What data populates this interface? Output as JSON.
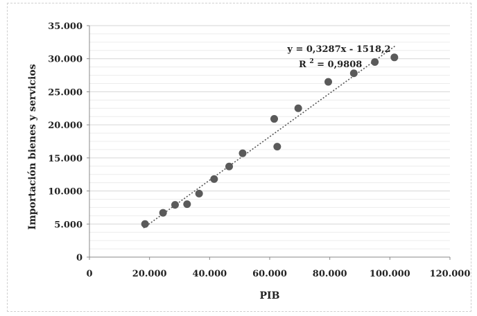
{
  "chart_data": {
    "type": "scatter",
    "title": "",
    "xlabel": "PIB",
    "ylabel": "Importación bienes y servicios",
    "xlim": [
      0,
      120000
    ],
    "ylim": [
      0,
      35000
    ],
    "x_ticks": [
      "0",
      "20.000",
      "40.000",
      "60.000",
      "80.000",
      "100.000",
      "120.000"
    ],
    "y_ticks": [
      "0",
      "5.000",
      "10.000",
      "15.000",
      "20.000",
      "25.000",
      "30.000",
      "35.000"
    ],
    "grid": true,
    "points": [
      {
        "x": 18500,
        "y": 5000
      },
      {
        "x": 24500,
        "y": 6700
      },
      {
        "x": 28500,
        "y": 7900
      },
      {
        "x": 32500,
        "y": 8000
      },
      {
        "x": 36500,
        "y": 9600
      },
      {
        "x": 41500,
        "y": 11800
      },
      {
        "x": 46500,
        "y": 13700
      },
      {
        "x": 51000,
        "y": 15700
      },
      {
        "x": 61500,
        "y": 20900
      },
      {
        "x": 62500,
        "y": 16700
      },
      {
        "x": 69500,
        "y": 22500
      },
      {
        "x": 79500,
        "y": 26500
      },
      {
        "x": 88000,
        "y": 27800
      },
      {
        "x": 95000,
        "y": 29500
      },
      {
        "x": 101500,
        "y": 30200
      }
    ],
    "trendline": {
      "type": "linear",
      "slope": 0.3287,
      "intercept": -1518.2,
      "x_range": [
        18000,
        102000
      ],
      "equation_label": "y = 0,3287x - 1518,2",
      "r2_label_prefix": "R",
      "r2_label_sup": "2",
      "r2_label_value": " = 0,9808"
    },
    "colors": {
      "marker": "#5a5a5a",
      "trendline": "#555555",
      "grid": "#d6d6d6",
      "axis": "#888888"
    }
  }
}
